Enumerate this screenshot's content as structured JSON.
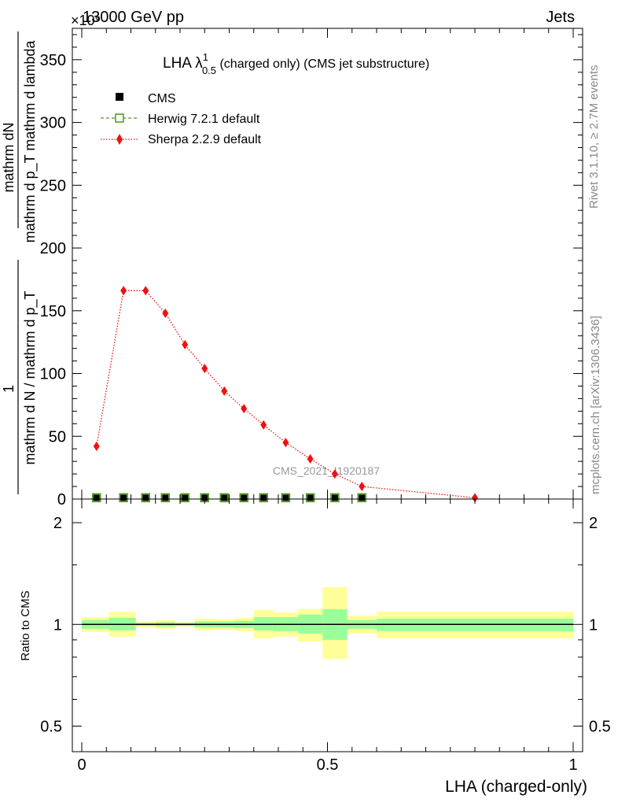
{
  "header": {
    "left": "13000 GeV pp",
    "right": "Jets",
    "exponent": "×10⁹"
  },
  "side_labels": {
    "rivet": "Rivet 3.1.10, ≥ 2.7M events",
    "mcplots": "mcplots.cern.ch [arXiv:1306.3436]"
  },
  "watermark": "CMS_2021_I1920187",
  "chart_data": [
    {
      "type": "line",
      "title": "LHA λ¹₀.₅ (charged only) (CMS jet substructure)",
      "title_main": "LHA λ",
      "title_sup": "1",
      "title_sub": "0.5",
      "title_rest": " (charged only) (CMS jet substructure)",
      "ylabel_num": "mathrm dN",
      "ylabel_den": "mathrm d p_T mathrm d lambda",
      "ylabel_prefix_num": "1",
      "ylabel_prefix_den": "mathrm d N / mathrm d p_T",
      "xlabel": "LHA (charged-only)",
      "xlim": [
        0,
        1
      ],
      "ylim": [
        0,
        375
      ],
      "y_ticks": [
        0,
        50,
        100,
        150,
        200,
        250,
        300,
        350
      ],
      "y_tick_labels": [
        "0",
        "50",
        "100",
        "150",
        "200",
        "250",
        "300",
        "350"
      ],
      "legend_position": "top-left",
      "series": [
        {
          "name": "CMS",
          "color": "#000000",
          "marker": "filled-square",
          "x": [
            0.03,
            0.085,
            0.13,
            0.17,
            0.21,
            0.25,
            0.29,
            0.33,
            0.37,
            0.415,
            0.465,
            0.515,
            0.57
          ],
          "values": [
            0.4,
            0.4,
            0.4,
            0.4,
            0.4,
            0.4,
            0.4,
            0.4,
            0.4,
            0.4,
            0.4,
            0.4,
            0.4
          ]
        },
        {
          "name": "Herwig 7.2.1 default",
          "color": "#4a9a1a",
          "marker": "open-square",
          "x": [
            0.03,
            0.085,
            0.13,
            0.17,
            0.21,
            0.25,
            0.29,
            0.33,
            0.37,
            0.415,
            0.465,
            0.515,
            0.57
          ],
          "values": [
            0.4,
            0.4,
            0.4,
            0.4,
            0.4,
            0.4,
            0.4,
            0.4,
            0.4,
            0.4,
            0.4,
            0.4,
            0.4
          ]
        },
        {
          "name": "Sherpa 2.2.9 default",
          "color": "#ee1111",
          "marker": "diamond",
          "x": [
            0.03,
            0.085,
            0.13,
            0.17,
            0.21,
            0.25,
            0.29,
            0.33,
            0.37,
            0.415,
            0.465,
            0.515,
            0.57,
            0.8
          ],
          "values": [
            42,
            166,
            166,
            148,
            123,
            104,
            86,
            72,
            59,
            45,
            32,
            20,
            10,
            1
          ]
        }
      ]
    },
    {
      "type": "bar",
      "title": "",
      "ylabel": "Ratio to CMS",
      "xlabel": "LHA (charged-only)",
      "xlim": [
        0,
        1
      ],
      "ylim": [
        0.42,
        2.35
      ],
      "y_scale": "log",
      "y_ticks": [
        0.5,
        1,
        2
      ],
      "y_tick_labels": [
        "0.5",
        "1",
        "2"
      ],
      "x_ticks": [
        0,
        0.5,
        1
      ],
      "x_tick_labels": [
        "0",
        "0.5",
        "1"
      ],
      "reference_line": 1,
      "bands": {
        "bin_edges": [
          0,
          0.055,
          0.11,
          0.15,
          0.19,
          0.23,
          0.27,
          0.31,
          0.35,
          0.39,
          0.44,
          0.49,
          0.54,
          0.6,
          1.0
        ],
        "inner_color": "#99ff99",
        "outer_color": "#ffff99",
        "inner_lo": [
          0.97,
          0.96,
          0.99,
          0.985,
          0.99,
          0.98,
          0.98,
          0.975,
          0.96,
          0.955,
          0.94,
          0.9,
          0.97,
          0.955
        ],
        "inner_hi": [
          1.03,
          1.045,
          1.01,
          1.015,
          1.01,
          1.02,
          1.02,
          1.025,
          1.05,
          1.05,
          1.07,
          1.11,
          1.03,
          1.04
        ],
        "outer_lo": [
          0.95,
          0.92,
          0.98,
          0.97,
          0.985,
          0.96,
          0.965,
          0.955,
          0.91,
          0.92,
          0.89,
          0.79,
          0.94,
          0.91
        ],
        "outer_hi": [
          1.05,
          1.09,
          1.02,
          1.03,
          1.015,
          1.04,
          1.035,
          1.045,
          1.105,
          1.085,
          1.11,
          1.29,
          1.06,
          1.09
        ]
      }
    }
  ]
}
